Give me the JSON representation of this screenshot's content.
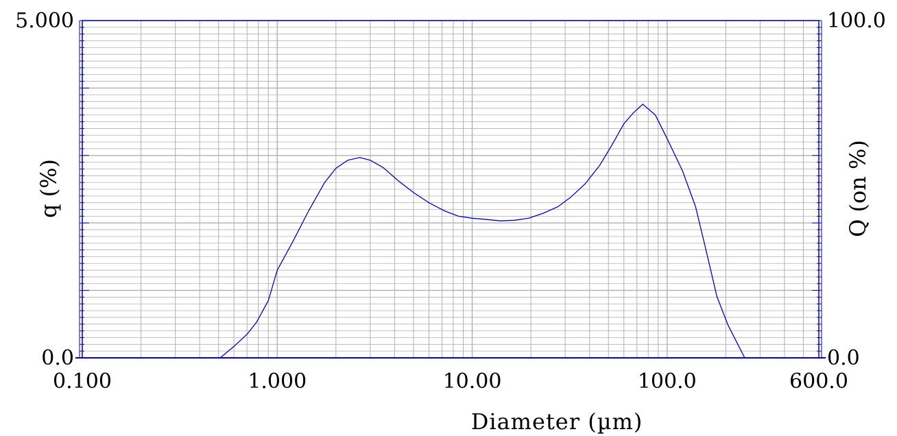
{
  "chart_data": {
    "type": "line",
    "title": "",
    "xlabel": "Diameter (µm)",
    "ylabel": "q (%)",
    "y2label": "Q (on %)",
    "xscale": "log",
    "xlim": [
      0.1,
      600.0
    ],
    "ylim": [
      0.0,
      5.0
    ],
    "y2lim": [
      0.0,
      100.0
    ],
    "grid": true,
    "x_tick_labels": [
      {
        "value": 0.1,
        "label": "0.100"
      },
      {
        "value": 1.0,
        "label": "1.000"
      },
      {
        "value": 10.0,
        "label": "10.00"
      },
      {
        "value": 100.0,
        "label": "100.0"
      },
      {
        "value": 600.0,
        "label": "600.0"
      }
    ],
    "y_tick_labels": [
      {
        "value": 0.0,
        "label": "0.0"
      },
      {
        "value": 5.0,
        "label": "5.000"
      }
    ],
    "y2_tick_labels": [
      {
        "value": 0.0,
        "label": "0.0"
      },
      {
        "value": 100.0,
        "label": "100.0"
      }
    ],
    "colors": {
      "series": "#0000cc",
      "grid": "#b0b0b0",
      "axis": "#0000cc"
    },
    "series": [
      {
        "x": [
          0.51,
          0.6,
          0.7,
          0.78,
          0.9,
          1.0,
          1.2,
          1.45,
          1.75,
          2.0,
          2.3,
          2.65,
          3.0,
          3.5,
          4.2,
          5.0,
          6.0,
          7.2,
          8.5,
          10.0,
          12.0,
          14.0,
          16.5,
          19.5,
          23.0,
          27.5,
          32.0,
          38.0,
          45.0,
          52.0,
          60.0,
          67.0,
          75.0,
          87.0,
          100.0,
          120.0,
          140.0,
          157.0,
          180.0,
          205.0,
          250.0
        ],
        "y": [
          0.0,
          0.17,
          0.35,
          0.52,
          0.85,
          1.3,
          1.72,
          2.18,
          2.6,
          2.81,
          2.93,
          2.97,
          2.93,
          2.82,
          2.62,
          2.45,
          2.3,
          2.18,
          2.1,
          2.07,
          2.05,
          2.03,
          2.04,
          2.07,
          2.14,
          2.24,
          2.38,
          2.58,
          2.85,
          3.15,
          3.47,
          3.63,
          3.76,
          3.6,
          3.25,
          2.77,
          2.24,
          1.64,
          0.91,
          0.49,
          0.0
        ]
      }
    ]
  }
}
